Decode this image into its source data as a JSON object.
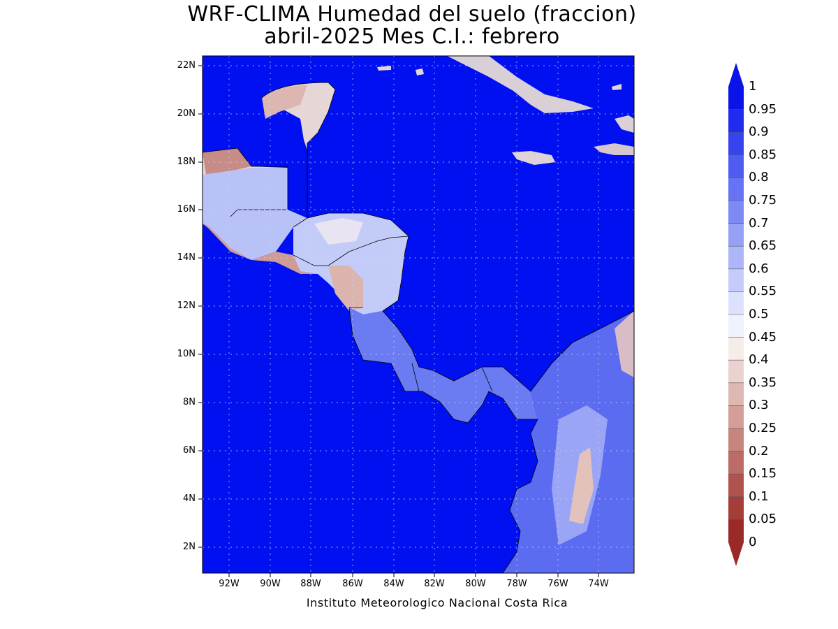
{
  "title": {
    "line1": "WRF-CLIMA Humedad del suelo (fraccion)",
    "line2": "abril-2025 Mes C.I.: febrero"
  },
  "map": {
    "lat_labels": [
      "22N",
      "20N",
      "18N",
      "16N",
      "14N",
      "12N",
      "10N",
      "8N",
      "6N",
      "4N",
      "2N"
    ],
    "lon_labels": [
      "92W",
      "90W",
      "88W",
      "86W",
      "84W",
      "82W",
      "80W",
      "78W",
      "76W",
      "74W"
    ],
    "ocean_color": "#0010f0",
    "grid": true
  },
  "colorbar": {
    "labels": [
      "1",
      "0.95",
      "0.9",
      "0.85",
      "0.8",
      "0.75",
      "0.7",
      "0.65",
      "0.6",
      "0.55",
      "0.5",
      "0.45",
      "0.4",
      "0.35",
      "0.3",
      "0.25",
      "0.2",
      "0.15",
      "0.1",
      "0.05",
      "0"
    ],
    "colors": [
      "#0a14e8",
      "#1f2bee",
      "#3644f0",
      "#4e5cf2",
      "#6573f4",
      "#7d8af5",
      "#95a0f7",
      "#adb6f9",
      "#c5ccfb",
      "#dde1fd",
      "#f0f2fe",
      "#f6ecea",
      "#ead2cf",
      "#deb9b4",
      "#d29f99",
      "#c6857f",
      "#bb6c66",
      "#b0534e",
      "#a53d39",
      "#9a2a27"
    ],
    "arrow_top_color": "#0a14e8",
    "arrow_bottom_color": "#9a2a27"
  },
  "credit": "Instituto Meteorologico Nacional Costa Rica"
}
